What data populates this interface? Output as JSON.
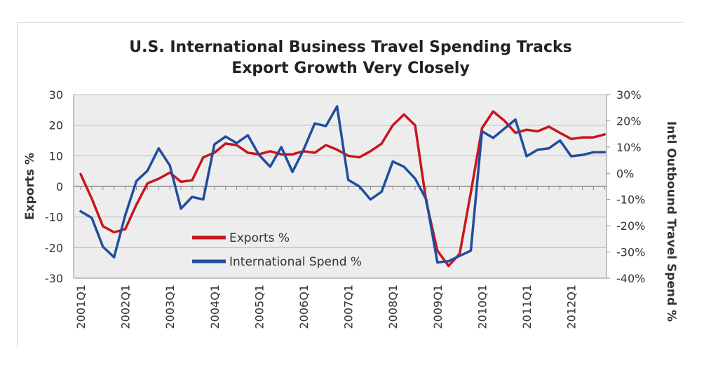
{
  "chart_data": {
    "type": "line",
    "title": [
      "U.S. International Business Travel Spending Tracks",
      "Export Growth Very Closely"
    ],
    "ylabel": "Exports %",
    "y2label": "Intl Outbound Travel Spend %",
    "ylim": [
      -30,
      30
    ],
    "y2lim": [
      -0.4,
      0.3
    ],
    "yticks": [
      "30",
      "20",
      "10",
      "0",
      "-10",
      "-20",
      "-30"
    ],
    "y2ticks": [
      "30%",
      "20%",
      "10%",
      "0%",
      "-10%",
      "-20%",
      "-30%",
      "-40%"
    ],
    "xticks": [
      {
        "label": "2001Q1",
        "index": 0
      },
      {
        "label": "2002Q1",
        "index": 4
      },
      {
        "label": "2003Q1",
        "index": 8
      },
      {
        "label": "2004Q1",
        "index": 12
      },
      {
        "label": "2005Q1",
        "index": 16
      },
      {
        "label": "2006Q1",
        "index": 20
      },
      {
        "label": "2007Q1",
        "index": 24
      },
      {
        "label": "2008Q1",
        "index": 28
      },
      {
        "label": "2009Q1",
        "index": 32
      },
      {
        "label": "2010Q1",
        "index": 36
      },
      {
        "label": "2011Q1",
        "index": 40
      },
      {
        "label": "2012Q1",
        "index": 44
      }
    ],
    "x": [
      "2001Q1",
      "2001Q2",
      "2001Q3",
      "2001Q4",
      "2002Q1",
      "2002Q2",
      "2002Q3",
      "2002Q4",
      "2003Q1",
      "2003Q2",
      "2003Q3",
      "2003Q4",
      "2004Q1",
      "2004Q2",
      "2004Q3",
      "2004Q4",
      "2005Q1",
      "2005Q2",
      "2005Q3",
      "2005Q4",
      "2006Q1",
      "2006Q2",
      "2006Q3",
      "2006Q4",
      "2007Q1",
      "2007Q2",
      "2007Q3",
      "2007Q4",
      "2008Q1",
      "2008Q2",
      "2008Q3",
      "2008Q4",
      "2009Q1",
      "2009Q2",
      "2009Q3",
      "2009Q4",
      "2010Q1",
      "2010Q2",
      "2010Q3",
      "2010Q4",
      "2011Q1",
      "2011Q2",
      "2011Q3",
      "2011Q4",
      "2012Q1",
      "2012Q2",
      "2012Q3",
      "2012Q4"
    ],
    "series": [
      {
        "name": "Exports %",
        "axis": "left",
        "color": "#c8161d",
        "values": [
          4,
          -4,
          -13,
          -15,
          -14,
          -6,
          1,
          2.5,
          4.5,
          1.5,
          2,
          9.5,
          11,
          14,
          13.5,
          11,
          10.5,
          11.5,
          10.5,
          10.5,
          11.5,
          11,
          13.5,
          12,
          10,
          9.5,
          11.5,
          14,
          20,
          23.5,
          20,
          -5,
          -21,
          -26,
          -22,
          -2,
          19,
          24.5,
          21.5,
          17.5,
          18.5,
          18,
          19.5,
          17.5,
          15.5,
          16,
          16,
          17
        ]
      },
      {
        "name": "International Spend %",
        "axis": "right",
        "color": "#1f4e9e",
        "values": [
          -0.145,
          -0.17,
          -0.28,
          -0.32,
          -0.16,
          -0.03,
          0.01,
          0.095,
          0.03,
          -0.135,
          -0.09,
          -0.1,
          0.11,
          0.14,
          0.115,
          0.145,
          0.07,
          0.025,
          0.1,
          0.005,
          0.09,
          0.19,
          0.18,
          0.255,
          -0.025,
          -0.05,
          -0.1,
          -0.07,
          0.045,
          0.025,
          -0.02,
          -0.1,
          -0.34,
          -0.335,
          -0.315,
          -0.295,
          0.16,
          0.135,
          0.17,
          0.205,
          0.065,
          0.09,
          0.095,
          0.125,
          0.065,
          0.07,
          0.08,
          0.08
        ]
      }
    ],
    "legend_position": "bottom-left inside",
    "grid": true
  }
}
